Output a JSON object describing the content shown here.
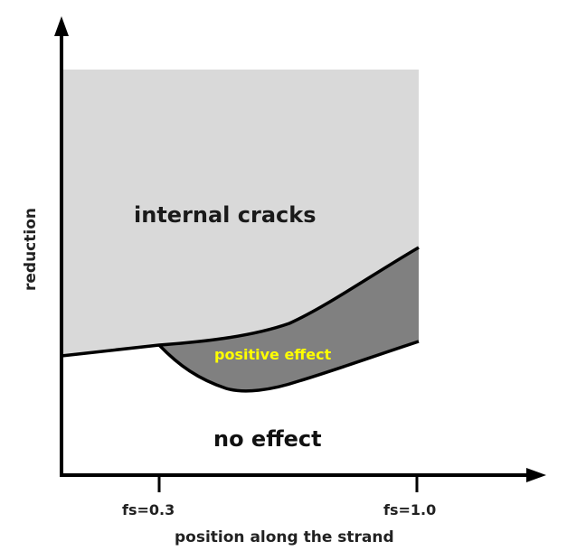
{
  "diagram": {
    "regions": {
      "internal_cracks": {
        "label": "internal cracks",
        "fill": "#d9d9d9"
      },
      "positive_effect": {
        "label": "positive effect",
        "fill": "#808080",
        "label_color": "#ffff00"
      },
      "no_effect": {
        "label": "no effect"
      }
    },
    "axes": {
      "x_label": "position along the strand",
      "y_label": "reduction",
      "x_ticks": [
        "fs=0.3",
        "fs=1.0"
      ]
    },
    "colors": {
      "axis": "#000000",
      "boundary": "#000000"
    }
  }
}
